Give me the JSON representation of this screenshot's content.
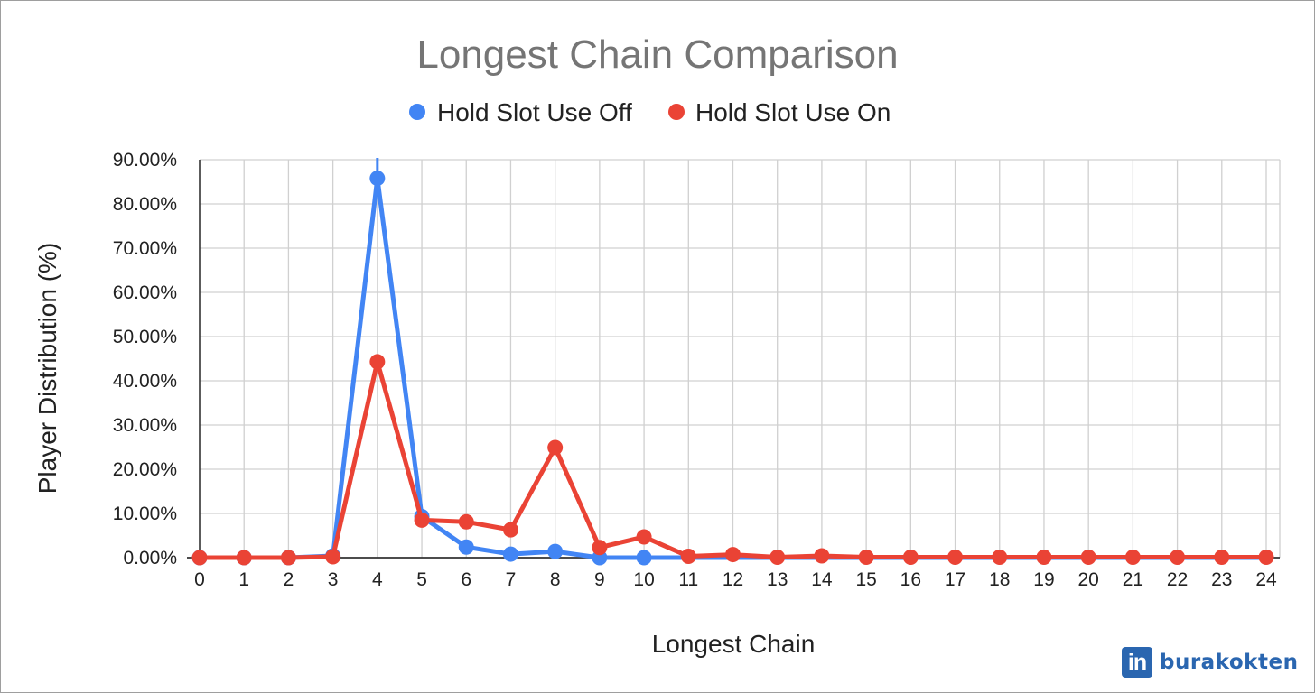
{
  "chart_data": {
    "type": "line",
    "title": "Longest Chain Comparison",
    "xlabel": "Longest Chain",
    "ylabel": "Player Distribution (%)",
    "x": [
      0,
      1,
      2,
      3,
      4,
      5,
      6,
      7,
      8,
      9,
      10,
      11,
      12,
      13,
      14,
      15,
      16,
      17,
      18,
      19,
      20,
      21,
      22,
      23,
      24
    ],
    "ylim": [
      0,
      90
    ],
    "yticks": [
      "0.00%",
      "10.00%",
      "20.00%",
      "30.00%",
      "40.00%",
      "50.00%",
      "60.00%",
      "70.00%",
      "80.00%",
      "90.00%"
    ],
    "yticks_values": [
      0,
      10,
      20,
      30,
      40,
      50,
      60,
      70,
      80,
      90
    ],
    "grid": true,
    "legend_position": "top",
    "series": [
      {
        "name": "Hold Slot Use Off",
        "color": "#4285f4",
        "marker_count": 11,
        "values": [
          0,
          0,
          0,
          0.4,
          85.8,
          9.3,
          2.4,
          0.8,
          1.4,
          0,
          0,
          0,
          0,
          0,
          0,
          0,
          0,
          0,
          0,
          0,
          0,
          0,
          0,
          0,
          0
        ]
      },
      {
        "name": "Hold Slot Use On",
        "color": "#ea4335",
        "marker_count": 25,
        "values": [
          0,
          0,
          0,
          0.2,
          44.3,
          8.5,
          8.1,
          6.3,
          24.9,
          2.3,
          4.7,
          0.3,
          0.7,
          0.1,
          0.4,
          0.1,
          0.1,
          0.1,
          0.1,
          0.1,
          0.1,
          0.1,
          0.1,
          0.1,
          0.1
        ]
      }
    ]
  },
  "branding": {
    "logo_text": "in",
    "name": "burakokten",
    "color": "#2a66b0"
  }
}
